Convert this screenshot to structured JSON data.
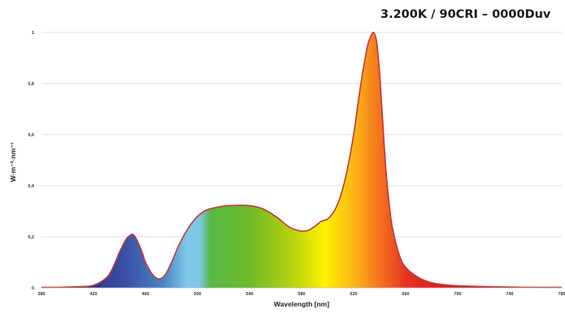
{
  "chart_data": {
    "type": "area",
    "title": "3.200K / 90CRI – 0000Duv",
    "xlabel": "Wavelength [nm]",
    "ylabel": "W·m⁻²·nm⁻¹",
    "xlim": [
      380,
      780
    ],
    "ylim": [
      0,
      1
    ],
    "x_ticks": [
      "380",
      "420",
      "460",
      "500",
      "540",
      "580",
      "620",
      "660",
      "700",
      "740",
      "780"
    ],
    "y_ticks": [
      "0",
      "0,2",
      "0,4",
      "0,6",
      "0,8",
      "1"
    ],
    "grid": true,
    "fill": "visible spectrum color gradient",
    "series": [
      {
        "name": "",
        "line_color": "#c03838",
        "x": [
          380,
          390,
          400,
          410,
          420,
          430,
          435,
          440,
          445,
          448,
          450,
          452,
          455,
          458,
          460,
          465,
          470,
          475,
          480,
          485,
          490,
          495,
          500,
          505,
          510,
          520,
          530,
          540,
          550,
          560,
          565,
          570,
          575,
          580,
          585,
          590,
          595,
          600,
          605,
          610,
          615,
          620,
          625,
          630,
          632,
          635,
          637,
          638,
          640,
          642,
          645,
          648,
          650,
          655,
          660,
          670,
          680,
          690,
          700,
          720,
          740,
          760,
          780
        ],
        "y": [
          0.002,
          0.002,
          0.003,
          0.005,
          0.01,
          0.04,
          0.08,
          0.14,
          0.19,
          0.205,
          0.21,
          0.2,
          0.17,
          0.13,
          0.1,
          0.055,
          0.035,
          0.05,
          0.1,
          0.16,
          0.21,
          0.25,
          0.28,
          0.3,
          0.31,
          0.32,
          0.323,
          0.322,
          0.31,
          0.28,
          0.26,
          0.24,
          0.228,
          0.222,
          0.225,
          0.24,
          0.26,
          0.27,
          0.3,
          0.36,
          0.46,
          0.6,
          0.78,
          0.93,
          0.97,
          1.0,
          0.98,
          0.95,
          0.84,
          0.68,
          0.45,
          0.3,
          0.23,
          0.13,
          0.08,
          0.04,
          0.02,
          0.012,
          0.008,
          0.005,
          0.003,
          0.002,
          0.002
        ]
      }
    ]
  },
  "spectrum_colors": [
    "#2e2f8c",
    "#33479c",
    "#3a5fae",
    "#7ec8ec",
    "#5cb830",
    "#8fc31f",
    "#d8e000",
    "#fff200",
    "#f7a21b",
    "#f05a22",
    "#e31e24",
    "#d42020"
  ]
}
